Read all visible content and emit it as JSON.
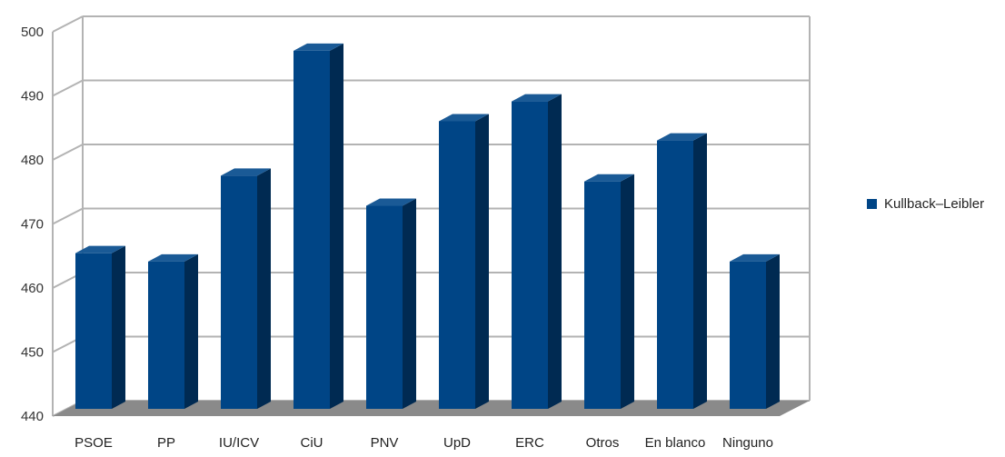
{
  "chart_data": {
    "type": "bar",
    "title": "",
    "xlabel": "",
    "ylabel": "",
    "categories": [
      "PSOE",
      "PP",
      "IU/ICV",
      "CiU",
      "PNV",
      "UpD",
      "ERC",
      "Otros",
      "En blanco",
      "Ninguno"
    ],
    "series": [
      {
        "name": "Kullback–Leibler",
        "values": [
          464.3,
          463.0,
          476.4,
          495.9,
          471.7,
          484.9,
          488.0,
          475.5,
          481.9,
          463.0
        ]
      }
    ],
    "ylim": [
      440,
      500
    ],
    "yticks": [
      "440",
      "450",
      "460",
      "470",
      "480",
      "490",
      "500"
    ],
    "grid": true,
    "legend_position": "right",
    "colors": {
      "bar_front": "#004586",
      "bar_side": "#002a52",
      "bar_top": "#1a5a96",
      "floor": "#8a8a8a",
      "grid": "#b3b3b3"
    }
  }
}
